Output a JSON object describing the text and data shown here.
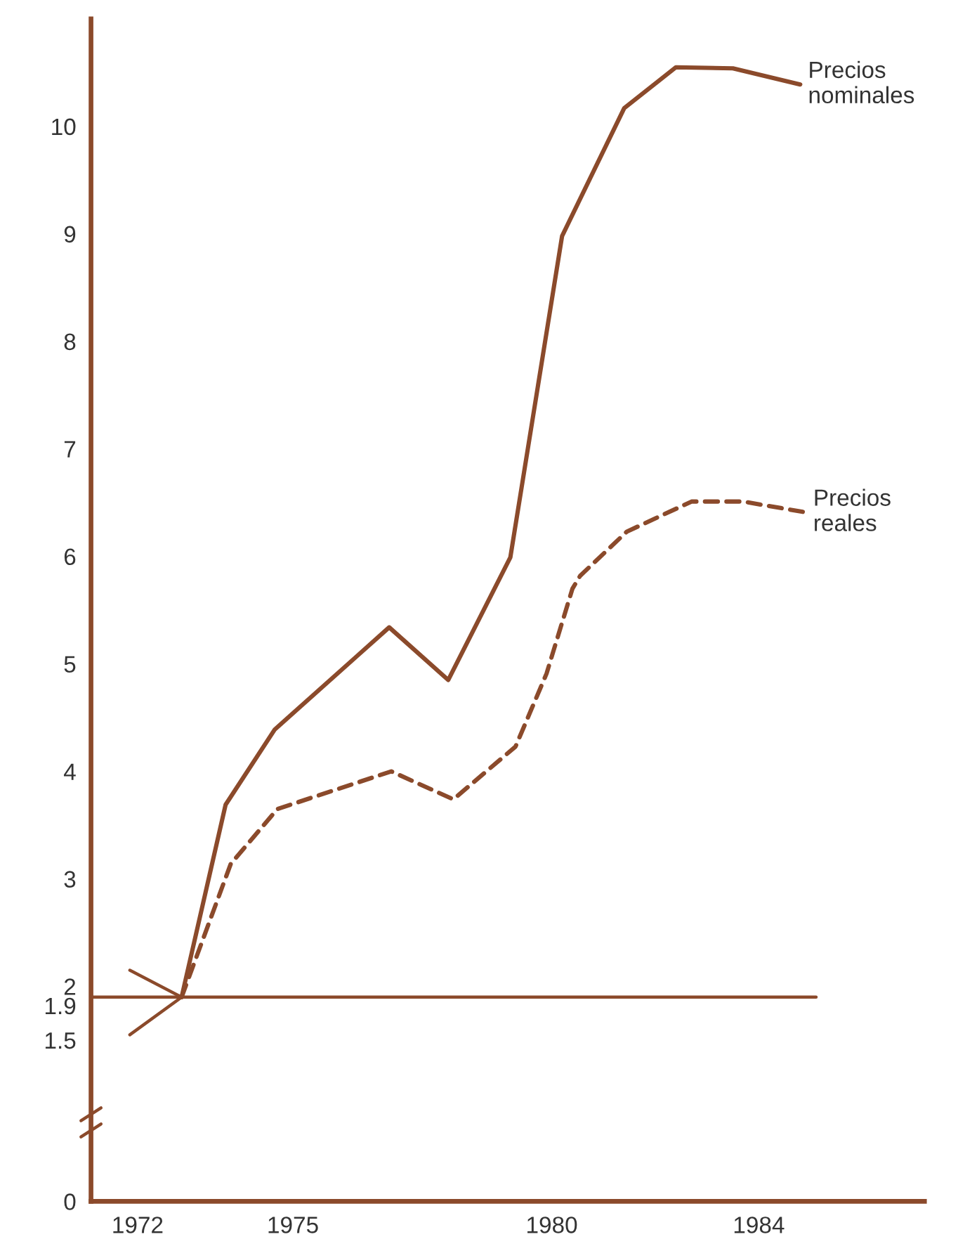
{
  "chart_data": {
    "type": "line",
    "xlim": [
      1971.1,
      1987.2
    ],
    "ylim": [
      0,
      11
    ],
    "xticks": [
      1972,
      1975,
      1980,
      1984
    ],
    "yticks": [
      0,
      1.5,
      1.9,
      2,
      3,
      4,
      5,
      6,
      7,
      8,
      9,
      10
    ],
    "grid": false,
    "legend": false,
    "marker": "none",
    "series": [
      {
        "name": "Precios\nnominales",
        "color": "#8b4a2b",
        "line_style": "solid",
        "x": [
          1972.85,
          1973.7,
          1974.65,
          1976.86,
          1978.0,
          1979.2,
          1980.2,
          1981.4,
          1982.4,
          1983.5,
          1984.8
        ],
        "values": [
          1.9,
          3.69,
          4.39,
          5.34,
          4.85,
          5.99,
          8.98,
          10.17,
          10.55,
          10.54,
          10.39
        ]
      },
      {
        "name": "Precios\nreales",
        "color": "#8b4a2b",
        "line_style": "dashed",
        "x": [
          1972.85,
          1973.8,
          1974.7,
          1976.9,
          1978.1,
          1979.3,
          1979.9,
          1980.4,
          1980.55,
          1981.45,
          1982.7,
          1983.7,
          1984.9
        ],
        "values": [
          1.9,
          3.14,
          3.65,
          4.0,
          3.74,
          4.23,
          4.91,
          5.7,
          5.82,
          6.23,
          6.51,
          6.51,
          6.41
        ]
      }
    ],
    "ref_lines": [
      {
        "axis": "y",
        "value": 1.9,
        "color": "#8b4a2b",
        "line_style": "solid"
      }
    ]
  }
}
